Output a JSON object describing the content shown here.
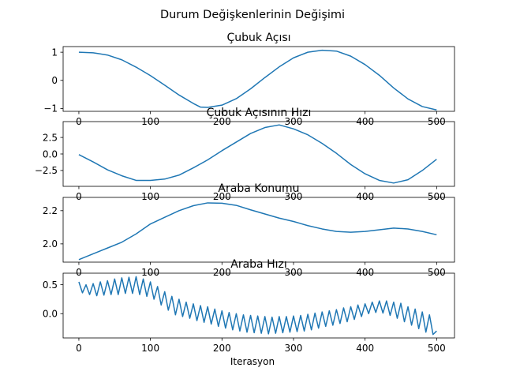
{
  "figure": {
    "suptitle": "Durum Değişkenlerinin Değişimi",
    "xlabel": "Iterasyon"
  },
  "chart_data": [
    {
      "type": "line",
      "title": "Çubuk Açısı",
      "xlim": [
        -22,
        525
      ],
      "ylim": [
        -1.1,
        1.2
      ],
      "xticks": [
        0,
        100,
        200,
        300,
        400,
        500
      ],
      "xtick_labels": [
        "0",
        "100",
        "200",
        "300",
        "400",
        "500"
      ],
      "yticks": [
        -1,
        0,
        1
      ],
      "ytick_labels": [
        "−1",
        "0",
        "1"
      ],
      "series": [
        {
          "x": [
            0,
            20,
            40,
            60,
            80,
            100,
            120,
            140,
            160,
            170,
            180,
            200,
            220,
            240,
            260,
            280,
            300,
            320,
            340,
            360,
            380,
            400,
            420,
            440,
            460,
            480,
            500
          ],
          "y": [
            1.0,
            0.98,
            0.9,
            0.73,
            0.47,
            0.17,
            -0.17,
            -0.52,
            -0.82,
            -0.95,
            -0.96,
            -0.88,
            -0.65,
            -0.3,
            0.1,
            0.48,
            0.8,
            1.0,
            1.07,
            1.04,
            0.86,
            0.56,
            0.18,
            -0.27,
            -0.66,
            -0.93,
            -1.05
          ]
        }
      ]
    },
    {
      "type": "line",
      "title": "Çubuk Açısının Hızı",
      "xlim": [
        -22,
        525
      ],
      "ylim": [
        -4.9,
        4.9
      ],
      "xticks": [
        0,
        100,
        200,
        300,
        400,
        500
      ],
      "xtick_labels": [
        "0",
        "100",
        "200",
        "300",
        "400",
        "500"
      ],
      "yticks": [
        -2.5,
        0,
        2.5
      ],
      "ytick_labels": [
        "−2.5",
        "0.0",
        "2.5"
      ],
      "series": [
        {
          "x": [
            0,
            20,
            40,
            60,
            80,
            100,
            120,
            140,
            160,
            180,
            200,
            220,
            240,
            260,
            280,
            300,
            320,
            340,
            360,
            380,
            400,
            420,
            440,
            460,
            480,
            500
          ],
          "y": [
            -0.1,
            -1.2,
            -2.4,
            -3.3,
            -4.0,
            -4.0,
            -3.8,
            -3.2,
            -2.1,
            -0.9,
            0.5,
            1.8,
            3.1,
            4.0,
            4.4,
            3.8,
            2.9,
            1.6,
            0.1,
            -1.6,
            -3.0,
            -4.0,
            -4.4,
            -3.9,
            -2.5,
            -0.8
          ]
        }
      ]
    },
    {
      "type": "line",
      "title": "Araba Konumu",
      "xlim": [
        -22,
        525
      ],
      "ylim": [
        1.89,
        2.28
      ],
      "xticks": [
        0,
        100,
        200,
        300,
        400,
        500
      ],
      "xtick_labels": [
        "0",
        "100",
        "200",
        "300",
        "400",
        "500"
      ],
      "yticks": [
        2.0,
        2.2
      ],
      "ytick_labels": [
        "2.0",
        "2.2"
      ],
      "series": [
        {
          "x": [
            0,
            20,
            40,
            60,
            80,
            100,
            120,
            140,
            160,
            180,
            200,
            220,
            240,
            260,
            280,
            300,
            320,
            340,
            360,
            380,
            400,
            420,
            440,
            460,
            480,
            500
          ],
          "y": [
            1.905,
            1.94,
            1.975,
            2.01,
            2.06,
            2.12,
            2.16,
            2.2,
            2.23,
            2.247,
            2.245,
            2.232,
            2.205,
            2.18,
            2.155,
            2.135,
            2.11,
            2.09,
            2.075,
            2.07,
            2.075,
            2.085,
            2.095,
            2.09,
            2.075,
            2.055
          ]
        }
      ]
    },
    {
      "type": "line",
      "title": "Araba Hızı",
      "xlim": [
        -22,
        525
      ],
      "ylim": [
        -0.42,
        0.7
      ],
      "xticks": [
        0,
        100,
        200,
        300,
        400,
        500
      ],
      "xtick_labels": [
        "0",
        "100",
        "200",
        "300",
        "400",
        "500"
      ],
      "yticks": [
        0,
        0.5
      ],
      "ytick_labels": [
        "0.0",
        "0.5"
      ],
      "series": [
        {
          "x": [
            0,
            5,
            10,
            15,
            20,
            25,
            30,
            35,
            40,
            45,
            50,
            55,
            60,
            65,
            70,
            75,
            80,
            85,
            90,
            95,
            100,
            105,
            110,
            115,
            120,
            125,
            130,
            135,
            140,
            145,
            150,
            155,
            160,
            165,
            170,
            175,
            180,
            185,
            190,
            195,
            200,
            205,
            210,
            215,
            220,
            225,
            230,
            235,
            240,
            245,
            250,
            255,
            260,
            265,
            270,
            275,
            280,
            285,
            290,
            295,
            300,
            305,
            310,
            315,
            320,
            325,
            330,
            335,
            340,
            345,
            350,
            355,
            360,
            365,
            370,
            375,
            380,
            385,
            390,
            395,
            400,
            405,
            410,
            415,
            420,
            425,
            430,
            435,
            440,
            445,
            450,
            455,
            460,
            465,
            470,
            475,
            480,
            485,
            490,
            495,
            500
          ],
          "y": [
            0.55,
            0.36,
            0.5,
            0.33,
            0.52,
            0.31,
            0.55,
            0.32,
            0.57,
            0.33,
            0.6,
            0.33,
            0.62,
            0.35,
            0.63,
            0.35,
            0.64,
            0.33,
            0.6,
            0.3,
            0.55,
            0.25,
            0.47,
            0.15,
            0.38,
            0.06,
            0.3,
            -0.02,
            0.25,
            -0.05,
            0.2,
            -0.08,
            0.17,
            -0.12,
            0.14,
            -0.15,
            0.12,
            -0.18,
            0.08,
            -0.22,
            0.05,
            -0.25,
            0.02,
            -0.28,
            0.0,
            -0.3,
            -0.02,
            -0.32,
            -0.03,
            -0.33,
            -0.04,
            -0.34,
            -0.05,
            -0.35,
            -0.06,
            -0.34,
            -0.05,
            -0.33,
            -0.05,
            -0.32,
            -0.04,
            -0.31,
            -0.03,
            -0.3,
            -0.01,
            -0.28,
            0.01,
            -0.25,
            0.03,
            -0.22,
            0.05,
            -0.2,
            0.07,
            -0.17,
            0.1,
            -0.14,
            0.12,
            -0.1,
            0.15,
            -0.05,
            0.17,
            0.0,
            0.2,
            0.02,
            0.22,
            0.01,
            0.22,
            -0.03,
            0.2,
            -0.08,
            0.18,
            -0.14,
            0.12,
            -0.2,
            0.08,
            -0.26,
            0.03,
            -0.32,
            -0.02,
            -0.36,
            -0.3
          ]
        }
      ]
    }
  ]
}
